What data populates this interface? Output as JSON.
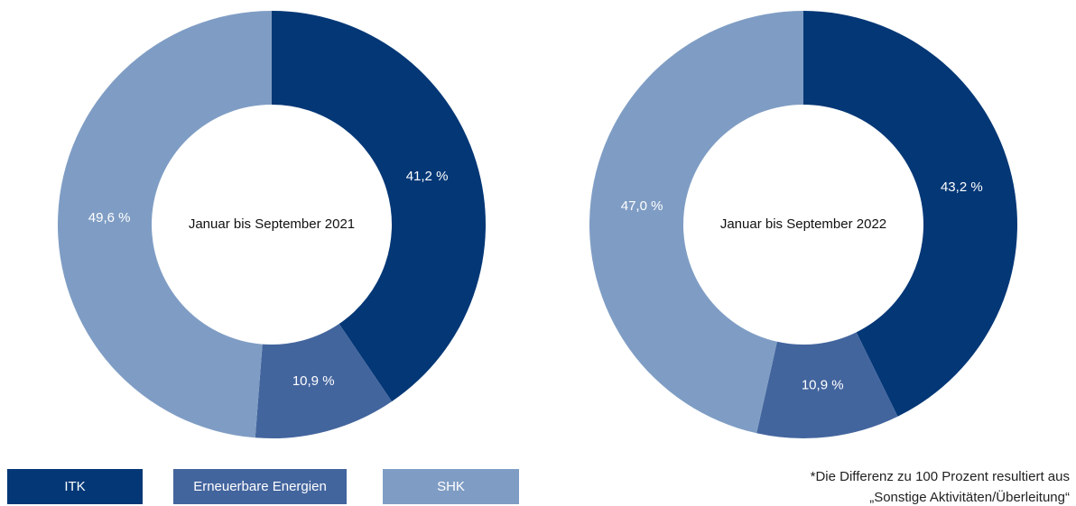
{
  "chart_data": [
    {
      "type": "donut",
      "title": "Januar bis September 2021",
      "categories": [
        "ITK",
        "Erneuerbare Energien",
        "SHK"
      ],
      "values": [
        41.2,
        10.9,
        49.6
      ],
      "value_labels": [
        "41,2 %",
        "10,9 %",
        "49,6 %"
      ],
      "colors": [
        "#033776",
        "#43659e",
        "#7f9dc4"
      ]
    },
    {
      "type": "donut",
      "title": "Januar bis September 2022",
      "categories": [
        "ITK",
        "Erneuerbare Energien",
        "SHK"
      ],
      "values": [
        43.2,
        10.9,
        47.0
      ],
      "value_labels": [
        "43,2 %",
        "10,9 %",
        "47,0 %"
      ],
      "colors": [
        "#033776",
        "#43659e",
        "#7f9dc4"
      ]
    }
  ],
  "footnote": [
    "*Die Differenz zu 100 Prozent resultiert aus",
    "„Sonstige Aktivitäten/Überleitung“"
  ]
}
